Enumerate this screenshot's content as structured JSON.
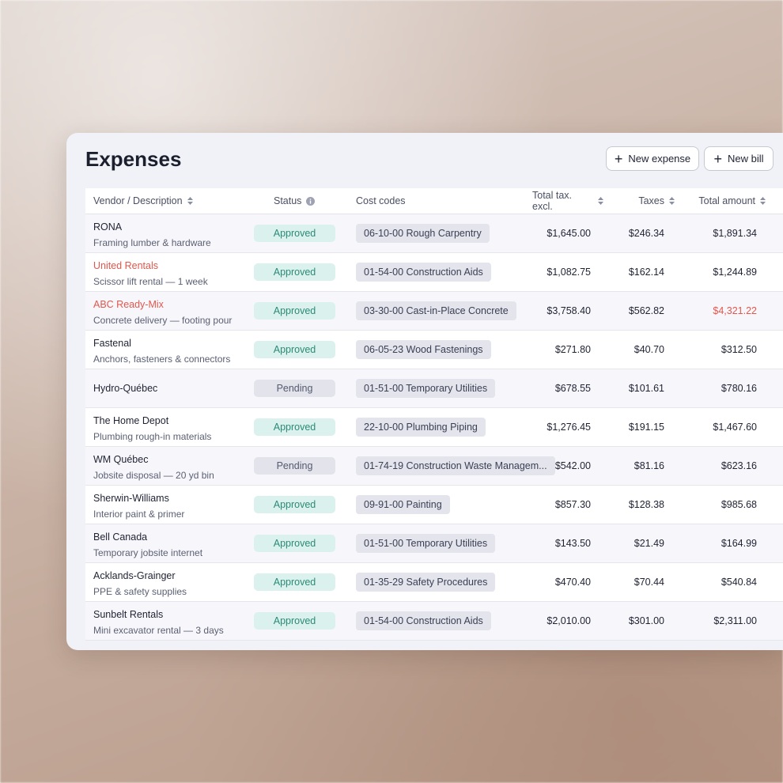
{
  "header": {
    "title": "Expenses",
    "buttons": [
      "New expense",
      "New bill"
    ]
  },
  "table": {
    "columns": [
      "Vendor / Description",
      "Status",
      "Cost codes",
      "Total tax. excl.",
      "Taxes",
      "Total amount"
    ],
    "status_colors": {
      "Approved": {
        "background": "#dbf1ee",
        "color": "#2b8a76"
      },
      "Pending": {
        "background": "#e2e3eb",
        "color": "#555b6e"
      }
    },
    "rows": [
      {
        "vendor": "RONA",
        "description": "Framing lumber & hardware",
        "status": "Approved",
        "cost_code": "06-10-00 Rough Carpentry",
        "total_excl": "$1,645.00",
        "taxes": "$246.34",
        "total": "$1,891.34"
      },
      {
        "vendor": "United Rentals",
        "vendor_color": "#e2574c",
        "description": "Scissor lift rental — 1 week",
        "status": "Approved",
        "cost_code": "01-54-00 Construction Aids",
        "total_excl": "$1,082.75",
        "taxes": "$162.14",
        "total": "$1,244.89"
      },
      {
        "vendor": "ABC Ready-Mix",
        "vendor_color": "#e2574c",
        "description": "Concrete delivery — footing pour",
        "status": "Approved",
        "cost_code": "03-30-00 Cast-in-Place Concrete",
        "total_excl": "$3,758.40",
        "taxes": "$562.82",
        "total": "$4,321.22",
        "total_color": "#e2574c"
      },
      {
        "vendor": "Fastenal",
        "description": "Anchors, fasteners & connectors",
        "status": "Approved",
        "cost_code": "06-05-23 Wood Fastenings",
        "total_excl": "$271.80",
        "taxes": "$40.70",
        "total": "$312.50"
      },
      {
        "vendor": "Hydro-Québec",
        "status": "Pending",
        "cost_code": "01-51-00 Temporary Utilities",
        "total_excl": "$678.55",
        "taxes": "$101.61",
        "total": "$780.16"
      },
      {
        "vendor": "The Home Depot",
        "description": "Plumbing rough-in materials",
        "status": "Approved",
        "cost_code": "22-10-00 Plumbing Piping",
        "total_excl": "$1,276.45",
        "taxes": "$191.15",
        "total": "$1,467.60"
      },
      {
        "vendor": "WM Québec",
        "description": "Jobsite disposal — 20 yd bin",
        "status": "Pending",
        "cost_code": "01-74-19 Construction Waste Managem...",
        "total_excl": "$542.00",
        "taxes": "$81.16",
        "total": "$623.16"
      },
      {
        "vendor": "Sherwin-Williams",
        "description": "Interior paint & primer",
        "status": "Approved",
        "cost_code": "09-91-00 Painting",
        "total_excl": "$857.30",
        "taxes": "$128.38",
        "total": "$985.68"
      },
      {
        "vendor": "Bell Canada",
        "description": "Temporary jobsite internet",
        "status": "Approved",
        "cost_code": "01-51-00 Temporary Utilities",
        "total_excl": "$143.50",
        "taxes": "$21.49",
        "total": "$164.99"
      },
      {
        "vendor": "Acklands-Grainger",
        "description": "PPE & safety supplies",
        "status": "Approved",
        "cost_code": "01-35-29 Safety Procedures",
        "total_excl": "$470.40",
        "taxes": "$70.44",
        "total": "$540.84"
      },
      {
        "vendor": "Sunbelt Rentals",
        "description": "Mini excavator rental — 3 days",
        "status": "Approved",
        "cost_code": "01-54-00 Construction Aids",
        "total_excl": "$2,010.00",
        "taxes": "$301.00",
        "total": "$2,311.00"
      }
    ]
  }
}
